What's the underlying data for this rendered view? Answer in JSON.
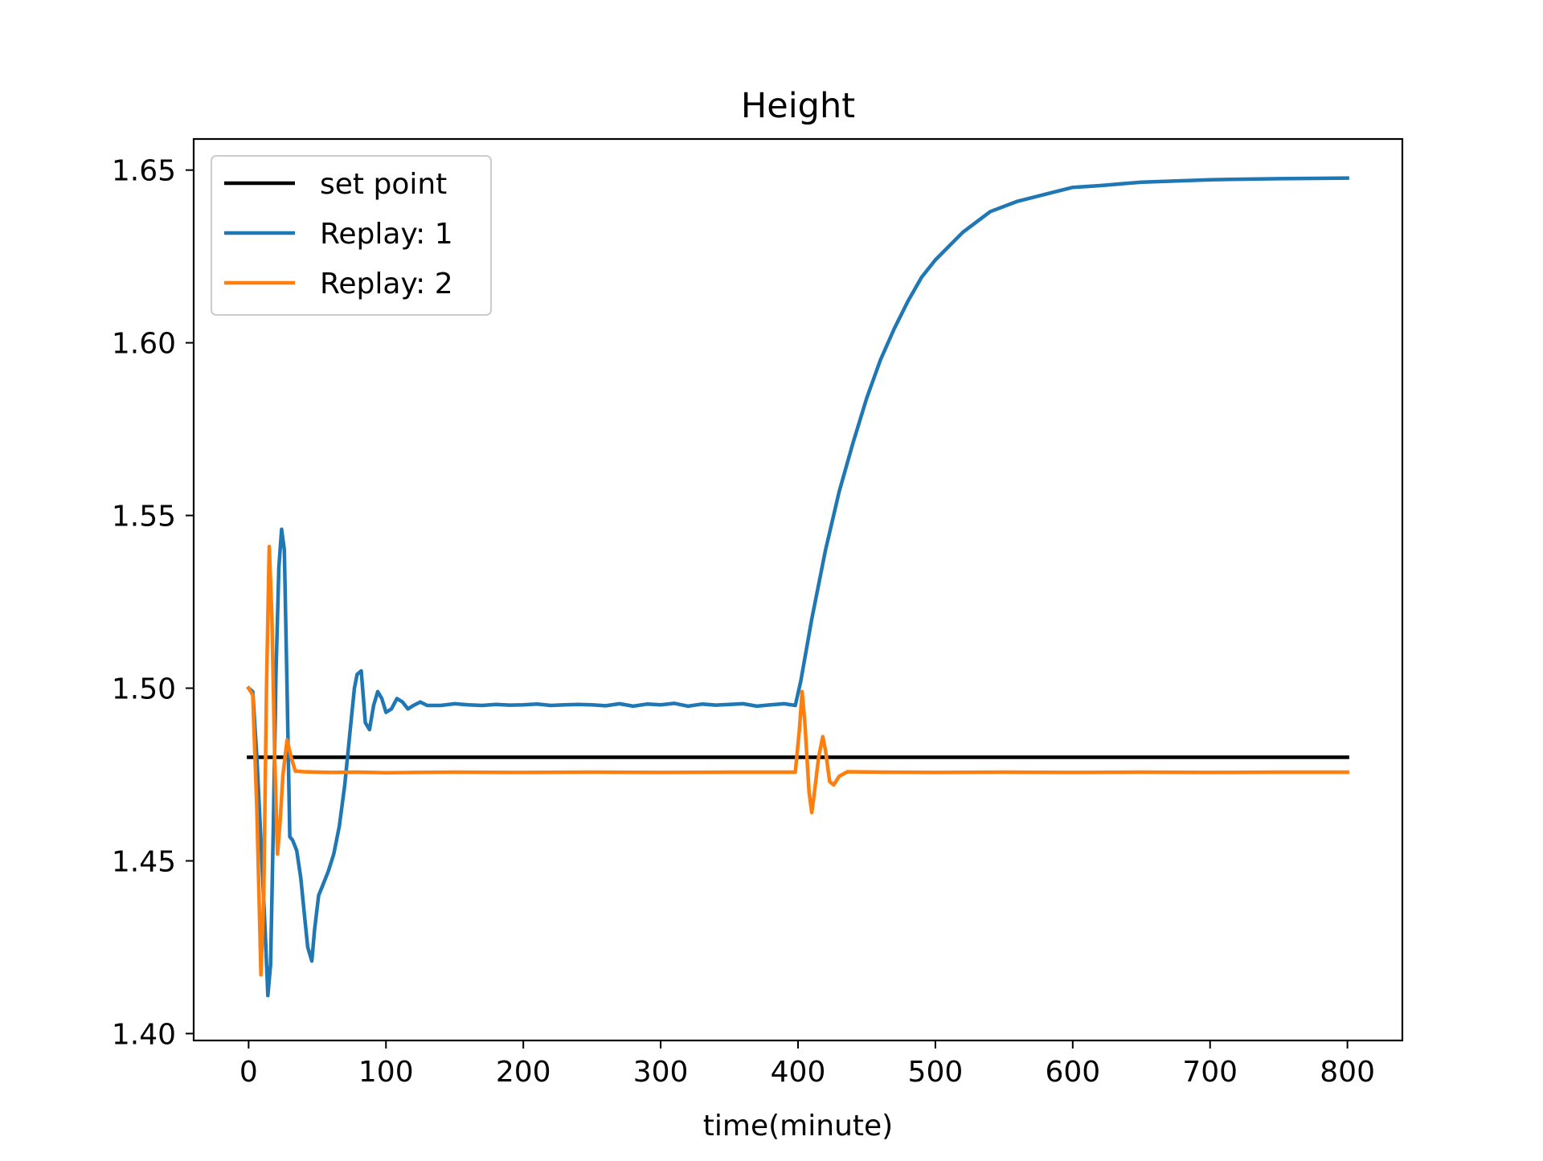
{
  "chart_data": {
    "type": "line",
    "title": "Height",
    "xlabel": "time(minute)",
    "ylabel": "",
    "xlim": [
      -40,
      840
    ],
    "ylim": [
      1.398,
      1.659
    ],
    "xticks": [
      0,
      100,
      200,
      300,
      400,
      500,
      600,
      700,
      800
    ],
    "xtick_labels": [
      "0",
      "100",
      "200",
      "300",
      "400",
      "500",
      "600",
      "700",
      "800"
    ],
    "yticks": [
      1.4,
      1.45,
      1.5,
      1.55,
      1.6,
      1.65
    ],
    "ytick_labels": [
      "1.40",
      "1.45",
      "1.50",
      "1.55",
      "1.60",
      "1.65"
    ],
    "grid": false,
    "legend_position": "top-left",
    "series": [
      {
        "name": "set point",
        "color": "#000000",
        "points": [
          [
            0,
            1.48
          ],
          [
            800,
            1.48
          ]
        ]
      },
      {
        "name": "Replay: 1",
        "color": "#1f77b4",
        "points": [
          [
            0,
            1.5
          ],
          [
            3,
            1.499
          ],
          [
            6,
            1.48
          ],
          [
            9,
            1.456
          ],
          [
            12,
            1.43
          ],
          [
            14,
            1.411
          ],
          [
            16,
            1.42
          ],
          [
            18,
            1.46
          ],
          [
            20,
            1.505
          ],
          [
            22,
            1.535
          ],
          [
            24,
            1.546
          ],
          [
            26,
            1.54
          ],
          [
            28,
            1.5
          ],
          [
            30,
            1.457
          ],
          [
            32,
            1.456
          ],
          [
            35,
            1.453
          ],
          [
            38,
            1.445
          ],
          [
            41,
            1.433
          ],
          [
            43,
            1.425
          ],
          [
            46,
            1.421
          ],
          [
            48,
            1.43
          ],
          [
            51,
            1.44
          ],
          [
            54,
            1.443
          ],
          [
            58,
            1.447
          ],
          [
            62,
            1.452
          ],
          [
            66,
            1.46
          ],
          [
            70,
            1.472
          ],
          [
            74,
            1.488
          ],
          [
            77,
            1.5
          ],
          [
            79,
            1.504
          ],
          [
            82,
            1.505
          ],
          [
            85,
            1.49
          ],
          [
            88,
            1.488
          ],
          [
            91,
            1.495
          ],
          [
            94,
            1.499
          ],
          [
            97,
            1.497
          ],
          [
            100,
            1.493
          ],
          [
            104,
            1.494
          ],
          [
            108,
            1.497
          ],
          [
            112,
            1.496
          ],
          [
            116,
            1.494
          ],
          [
            120,
            1.495
          ],
          [
            125,
            1.496
          ],
          [
            130,
            1.495
          ],
          [
            140,
            1.495
          ],
          [
            150,
            1.4955
          ],
          [
            160,
            1.4952
          ],
          [
            170,
            1.495
          ],
          [
            180,
            1.4953
          ],
          [
            190,
            1.4951
          ],
          [
            200,
            1.4952
          ],
          [
            210,
            1.4954
          ],
          [
            220,
            1.495
          ],
          [
            230,
            1.4952
          ],
          [
            240,
            1.4953
          ],
          [
            250,
            1.4952
          ],
          [
            260,
            1.4949
          ],
          [
            270,
            1.4955
          ],
          [
            280,
            1.4948
          ],
          [
            290,
            1.4954
          ],
          [
            300,
            1.4952
          ],
          [
            310,
            1.4956
          ],
          [
            320,
            1.4948
          ],
          [
            330,
            1.4954
          ],
          [
            340,
            1.4951
          ],
          [
            350,
            1.4953
          ],
          [
            360,
            1.4955
          ],
          [
            370,
            1.4948
          ],
          [
            380,
            1.4952
          ],
          [
            390,
            1.4955
          ],
          [
            398,
            1.495
          ],
          [
            402,
            1.502
          ],
          [
            410,
            1.52
          ],
          [
            420,
            1.54
          ],
          [
            430,
            1.557
          ],
          [
            440,
            1.571
          ],
          [
            450,
            1.584
          ],
          [
            460,
            1.595
          ],
          [
            470,
            1.604
          ],
          [
            480,
            1.612
          ],
          [
            490,
            1.619
          ],
          [
            500,
            1.624
          ],
          [
            520,
            1.632
          ],
          [
            540,
            1.638
          ],
          [
            560,
            1.641
          ],
          [
            580,
            1.643
          ],
          [
            600,
            1.645
          ],
          [
            620,
            1.6455
          ],
          [
            650,
            1.6465
          ],
          [
            700,
            1.6472
          ],
          [
            750,
            1.6475
          ],
          [
            800,
            1.6477
          ]
        ]
      },
      {
        "name": "Replay: 2",
        "color": "#ff7f0e",
        "points": [
          [
            0,
            1.5
          ],
          [
            3,
            1.498
          ],
          [
            6,
            1.465
          ],
          [
            9,
            1.417
          ],
          [
            11,
            1.44
          ],
          [
            13,
            1.5
          ],
          [
            15,
            1.541
          ],
          [
            17,
            1.52
          ],
          [
            19,
            1.48
          ],
          [
            21,
            1.452
          ],
          [
            23,
            1.462
          ],
          [
            25,
            1.475
          ],
          [
            28,
            1.485
          ],
          [
            31,
            1.48
          ],
          [
            34,
            1.476
          ],
          [
            40,
            1.4758
          ],
          [
            60,
            1.4756
          ],
          [
            80,
            1.4757
          ],
          [
            100,
            1.4755
          ],
          [
            120,
            1.4756
          ],
          [
            150,
            1.4757
          ],
          [
            200,
            1.4756
          ],
          [
            250,
            1.4757
          ],
          [
            300,
            1.4756
          ],
          [
            350,
            1.4757
          ],
          [
            398,
            1.4757
          ],
          [
            401,
            1.488
          ],
          [
            403,
            1.499
          ],
          [
            405,
            1.49
          ],
          [
            408,
            1.47
          ],
          [
            410,
            1.464
          ],
          [
            412,
            1.47
          ],
          [
            415,
            1.48
          ],
          [
            418,
            1.486
          ],
          [
            420,
            1.482
          ],
          [
            423,
            1.473
          ],
          [
            426,
            1.472
          ],
          [
            430,
            1.4745
          ],
          [
            436,
            1.4758
          ],
          [
            460,
            1.4757
          ],
          [
            500,
            1.4756
          ],
          [
            550,
            1.4757
          ],
          [
            600,
            1.4756
          ],
          [
            650,
            1.4757
          ],
          [
            700,
            1.4756
          ],
          [
            750,
            1.4757
          ],
          [
            800,
            1.4757
          ]
        ]
      }
    ]
  }
}
